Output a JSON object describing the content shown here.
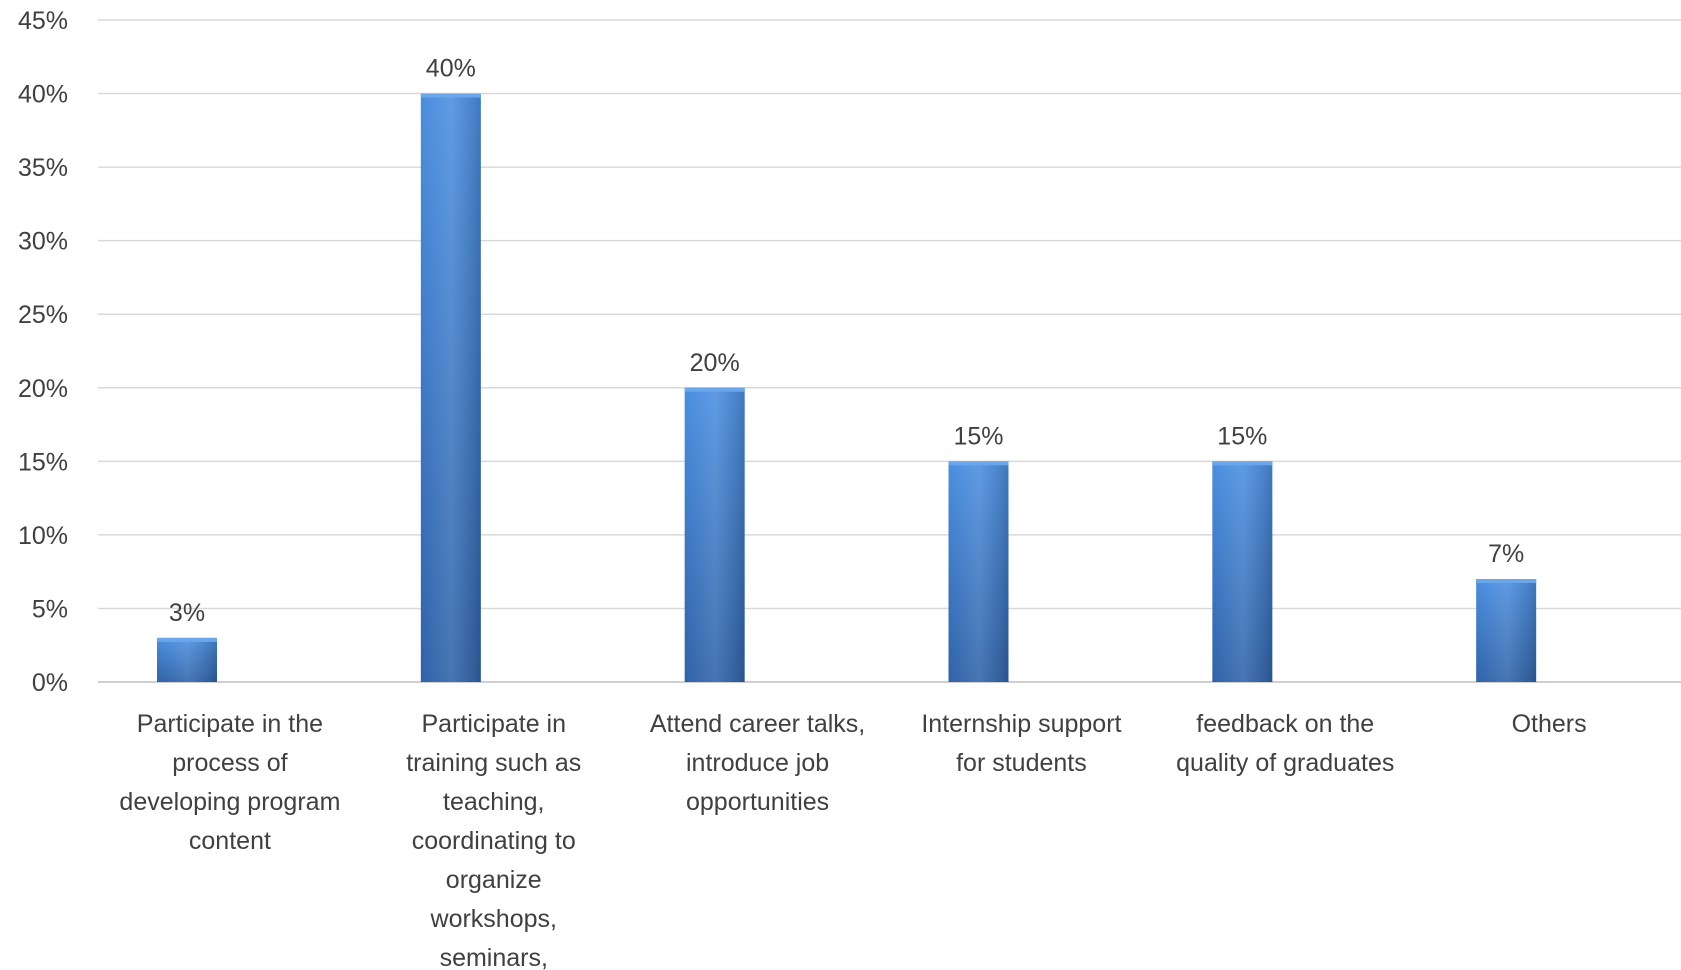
{
  "chart_data": {
    "type": "bar",
    "title": "",
    "xlabel": "",
    "ylabel": "",
    "ylim": [
      0,
      45
    ],
    "y_ticks": [
      "0%",
      "5%",
      "10%",
      "15%",
      "20%",
      "25%",
      "30%",
      "35%",
      "40%",
      "45%"
    ],
    "y_tick_values": [
      0,
      5,
      10,
      15,
      20,
      25,
      30,
      35,
      40,
      45
    ],
    "grid": true,
    "legend": "none",
    "bar_color": "#4a86d4",
    "categories": [
      "Participate in the process of developing program content",
      "Participate in training such as teaching, coordinating to organize workshops, seminars,",
      "Attend career talks, introduce job opportunities",
      "Internship support for students",
      "feedback on the quality of graduates",
      "Others"
    ],
    "category_lines": [
      [
        "Participate in the",
        "process of",
        "developing program",
        "content"
      ],
      [
        "Participate in",
        "training such as",
        "teaching,",
        "coordinating to",
        "organize",
        "workshops,",
        "seminars,"
      ],
      [
        "Attend career talks,",
        "introduce job",
        "opportunities"
      ],
      [
        "Internship support",
        "for students"
      ],
      [
        "feedback on the",
        "quality of graduates"
      ],
      [
        "Others"
      ]
    ],
    "values": [
      3,
      40,
      20,
      15,
      15,
      7
    ],
    "data_labels": [
      "3%",
      "40%",
      "20%",
      "15%",
      "15%",
      "7%"
    ]
  }
}
